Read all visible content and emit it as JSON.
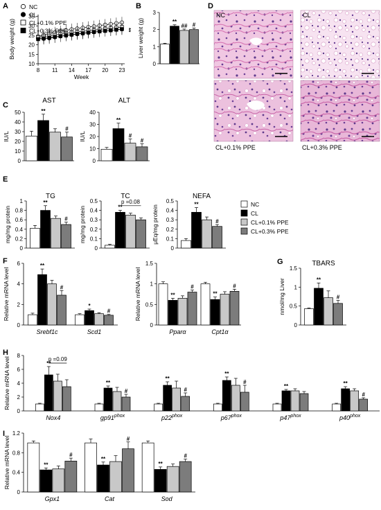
{
  "palette": {
    "NC": "#ffffff",
    "CL": "#000000",
    "CL+0.1% PPE": "#c8c8c8",
    "CL+0.3% PPE": "#7c7c7c",
    "histology_bg": "#f1cde6",
    "histology_nuclei": "#5e3a8c",
    "histology_cytoplasm": "#d776b4"
  },
  "histology": {
    "panel_label": "D",
    "labels": [
      "NC",
      "CL",
      "CL+0.1% PPE",
      "CL+0.3% PPE"
    ]
  },
  "chart_data": [
    {
      "id": "A",
      "panel_label": "A",
      "type": "line",
      "xlabel": "Week",
      "ylabel": "Body weight (g)",
      "xticks": [
        8,
        11,
        14,
        17,
        20,
        23
      ],
      "yticks": [
        10,
        15,
        20,
        25,
        30,
        35
      ],
      "xlim": [
        8,
        23.5
      ],
      "ylim": [
        10,
        36
      ],
      "legend": [
        "NC",
        "CL",
        "CL+0.1% PPE",
        "CL+0.3% PPE"
      ],
      "x": [
        8,
        9,
        10,
        11,
        12,
        13,
        14,
        15,
        16,
        17,
        18,
        19,
        20,
        21,
        22,
        23
      ],
      "series": [
        {
          "name": "NC",
          "marker": "circle-open",
          "values": [
            24.5,
            25.2,
            25.9,
            26.5,
            27.1,
            27.7,
            28.2,
            28.6,
            29.0,
            29.4,
            29.8,
            30.2,
            30.6,
            31.0,
            31.4,
            31.8
          ]
        },
        {
          "name": "CL",
          "marker": "circle-filled",
          "values": [
            23.5,
            23.2,
            23.5,
            24.0,
            24.5,
            24.9,
            25.3,
            25.7,
            26.0,
            26.4,
            26.7,
            27.1,
            27.4,
            27.7,
            28.0,
            28.3
          ]
        },
        {
          "name": "CL+0.1% PPE",
          "marker": "square-open",
          "values": [
            24.0,
            24.4,
            24.8,
            25.2,
            25.6,
            26.0,
            26.4,
            26.8,
            27.1,
            27.5,
            27.8,
            28.1,
            28.5,
            28.8,
            29.1,
            29.4
          ]
        },
        {
          "name": "CL+0.3% PPE",
          "marker": "square-filled",
          "values": [
            23.0,
            23.4,
            23.8,
            24.2,
            24.6,
            25.0,
            25.4,
            25.8,
            26.1,
            26.5,
            26.8,
            27.1,
            27.4,
            27.7,
            28.0,
            28.3
          ]
        }
      ],
      "error": 3,
      "annotations": [
        "**"
      ]
    },
    {
      "id": "B",
      "panel_label": "B",
      "type": "bar",
      "ylabel": "Liver weight (g)",
      "yticks": [
        0,
        1,
        2,
        3
      ],
      "ylim": [
        0,
        3
      ],
      "groups": [
        {
          "label": "",
          "values": [
            1.15,
            2.2,
            1.95,
            2.0
          ],
          "errors": [
            0.05,
            0.08,
            0.08,
            0.09
          ],
          "marks": [
            "",
            "**",
            "##",
            "#"
          ]
        }
      ]
    },
    {
      "id": "C1",
      "panel_label": "C",
      "type": "bar",
      "title": "AST",
      "ylabel": "IU/L",
      "yticks": [
        0,
        10,
        20,
        30,
        40,
        50
      ],
      "ylim": [
        0,
        50
      ],
      "groups": [
        {
          "label": "",
          "values": [
            25.5,
            41.5,
            29.5,
            24.5
          ],
          "errors": [
            5,
            6.5,
            3.5,
            5
          ],
          "marks": [
            "",
            "**",
            "",
            "#"
          ]
        }
      ]
    },
    {
      "id": "C2",
      "panel_label": "",
      "type": "bar",
      "title": "ALT",
      "ylabel": "IU/L",
      "yticks": [
        0,
        10,
        20,
        30,
        40
      ],
      "ylim": [
        0,
        40
      ],
      "groups": [
        {
          "label": "",
          "values": [
            9.5,
            26.5,
            14.5,
            11.5
          ],
          "errors": [
            1.5,
            4.5,
            3.5,
            2.5
          ],
          "marks": [
            "",
            "**",
            "#",
            "#"
          ]
        }
      ]
    },
    {
      "id": "E1",
      "panel_label": "E",
      "type": "bar",
      "title": "TG",
      "ylabel": "mg/mg protein",
      "yticks": [
        0,
        0.2,
        0.4,
        0.6,
        0.8,
        1
      ],
      "yticklabels": [
        "0",
        "0.2",
        "0.4",
        "0.6",
        "0.8",
        "1"
      ],
      "ylim": [
        0,
        1
      ],
      "groups": [
        {
          "label": "",
          "values": [
            0.42,
            0.8,
            0.63,
            0.5
          ],
          "errors": [
            0.06,
            0.1,
            0.05,
            0.05
          ],
          "marks": [
            "",
            "**",
            "",
            "#"
          ]
        }
      ]
    },
    {
      "id": "E2",
      "panel_label": "",
      "type": "bar",
      "title": "TC",
      "ylabel": "mg/mg protein",
      "yticks": [
        0,
        0.1,
        0.2,
        0.3,
        0.4,
        0.5
      ],
      "yticklabels": [
        "0",
        "0.1",
        "0.2",
        "0.3",
        "0.4",
        "0.5"
      ],
      "ylim": [
        0,
        0.5
      ],
      "groups": [
        {
          "label": "",
          "values": [
            0.03,
            0.38,
            0.35,
            0.3
          ],
          "errors": [
            0.01,
            0.02,
            0.02,
            0.02
          ],
          "marks": [
            "",
            "**",
            "",
            ""
          ]
        }
      ],
      "bracket": {
        "from": 1,
        "to": 3,
        "y": 0.45,
        "text": "p =0.08"
      }
    },
    {
      "id": "E3",
      "panel_label": "",
      "type": "bar",
      "title": "NEFA",
      "ylabel": "μEq/mg protein",
      "yticks": [
        0,
        0.1,
        0.2,
        0.3,
        0.4,
        0.5
      ],
      "yticklabels": [
        "0",
        "0.1",
        "0.2",
        "0.3",
        "0.4",
        "0.5"
      ],
      "ylim": [
        0,
        0.5
      ],
      "groups": [
        {
          "label": "",
          "values": [
            0.08,
            0.38,
            0.3,
            0.23
          ],
          "errors": [
            0.02,
            0.05,
            0.03,
            0.02
          ],
          "marks": [
            "",
            "**",
            "",
            "#"
          ]
        }
      ],
      "legend": [
        "NC",
        "CL",
        "CL+0.1% PPE",
        "CL+0.3% PPE"
      ]
    },
    {
      "id": "F1",
      "panel_label": "F",
      "type": "bar",
      "ylabel": "Relative mRNA level",
      "yticks": [
        0,
        2,
        4,
        6
      ],
      "ylim": [
        0,
        6
      ],
      "groups": [
        {
          "label": "Srebf1c",
          "values": [
            1.0,
            4.9,
            4.0,
            2.9
          ],
          "errors": [
            0.15,
            0.55,
            0.35,
            0.45
          ],
          "marks": [
            "",
            "**",
            "",
            "#"
          ]
        },
        {
          "label": "Scd1",
          "values": [
            1.0,
            1.4,
            1.1,
            0.95
          ],
          "errors": [
            0.1,
            0.15,
            0.1,
            0.08
          ],
          "marks": [
            "",
            "*",
            "",
            "#"
          ]
        }
      ]
    },
    {
      "id": "F2",
      "panel_label": "",
      "type": "bar",
      "ylabel": "Relative mRNA level",
      "yticks": [
        0,
        0.5,
        1,
        1.5
      ],
      "yticklabels": [
        "0",
        "0.5",
        "1",
        "1.5"
      ],
      "ylim": [
        0,
        1.5
      ],
      "groups": [
        {
          "label": "Pparα",
          "values": [
            1.0,
            0.6,
            0.65,
            0.8
          ],
          "errors": [
            0.05,
            0.05,
            0.06,
            0.05
          ],
          "marks": [
            "",
            "**",
            "",
            "#"
          ]
        },
        {
          "label": "Cpt1α",
          "values": [
            1.0,
            0.62,
            0.75,
            0.82
          ],
          "errors": [
            0.04,
            0.06,
            0.06,
            0.05
          ],
          "marks": [
            "",
            "**",
            "",
            "#"
          ]
        }
      ]
    },
    {
      "id": "G",
      "panel_label": "G",
      "type": "bar",
      "title": "TBARS",
      "ylabel": "nmol/mg Liver",
      "yticks": [
        0,
        0.5,
        1,
        1.5
      ],
      "yticklabels": [
        "0",
        "0.5",
        "1",
        "1.5"
      ],
      "ylim": [
        0,
        1.5
      ],
      "groups": [
        {
          "label": "",
          "values": [
            0.43,
            0.97,
            0.72,
            0.57
          ],
          "errors": [
            0.02,
            0.14,
            0.18,
            0.08
          ],
          "marks": [
            "",
            "**",
            "",
            "#"
          ]
        }
      ]
    },
    {
      "id": "H",
      "panel_label": "H",
      "type": "bar",
      "ylabel": "Relative mRNA level",
      "yticks": [
        0,
        2,
        4,
        6,
        8
      ],
      "ylim": [
        0,
        8
      ],
      "groups": [
        {
          "label": "Nox4",
          "values": [
            1.0,
            5.2,
            4.3,
            3.5
          ],
          "errors": [
            0.1,
            1.2,
            1.0,
            1.0
          ],
          "marks": [
            "",
            "**",
            "",
            ""
          ]
        },
        {
          "label": "gp91",
          "sup": "phox",
          "values": [
            1.0,
            3.3,
            2.8,
            2.0
          ],
          "errors": [
            0.1,
            0.3,
            0.6,
            0.4
          ],
          "marks": [
            "",
            "**",
            "",
            "#"
          ]
        },
        {
          "label": "p22",
          "sup": "phox",
          "values": [
            1.0,
            3.7,
            3.3,
            2.1
          ],
          "errors": [
            0.1,
            0.5,
            1.0,
            0.5
          ],
          "marks": [
            "",
            "**",
            "",
            "#"
          ]
        },
        {
          "label": "p67",
          "sup": "phox",
          "values": [
            1.0,
            4.4,
            3.7,
            2.7
          ],
          "errors": [
            0.1,
            0.5,
            1.0,
            1.0
          ],
          "marks": [
            "",
            "**",
            "",
            "#"
          ]
        },
        {
          "label": "p47",
          "sup": "phox",
          "values": [
            1.0,
            2.9,
            2.9,
            2.5
          ],
          "errors": [
            0.1,
            0.2,
            0.3,
            0.3
          ],
          "marks": [
            "",
            "**",
            "",
            ""
          ]
        },
        {
          "label": "p40",
          "sup": "phox",
          "values": [
            1.0,
            3.2,
            2.9,
            1.7
          ],
          "errors": [
            0.1,
            0.3,
            0.3,
            0.2
          ],
          "marks": [
            "",
            "**",
            "",
            "#"
          ]
        }
      ],
      "bracket": {
        "from": 1,
        "to": 3,
        "y": 6.9,
        "text": "p =0.09"
      }
    },
    {
      "id": "I",
      "panel_label": "I",
      "type": "bar",
      "ylabel": "Relative mRNA level",
      "yticks": [
        0,
        0.4,
        0.8,
        1.2
      ],
      "yticklabels": [
        "0",
        "0.4",
        "0.8",
        "1.2"
      ],
      "ylim": [
        0,
        1.2
      ],
      "groups": [
        {
          "label": "Gpx1",
          "values": [
            1.0,
            0.45,
            0.47,
            0.63
          ],
          "errors": [
            0.04,
            0.04,
            0.06,
            0.06
          ],
          "marks": [
            "",
            "**",
            "",
            "#"
          ]
        },
        {
          "label": "Cat",
          "values": [
            1.0,
            0.55,
            0.62,
            0.88
          ],
          "errors": [
            0.08,
            0.06,
            0.12,
            0.14
          ],
          "marks": [
            "",
            "**",
            "",
            "#"
          ]
        },
        {
          "label": "Sod",
          "values": [
            1.0,
            0.46,
            0.52,
            0.62
          ],
          "errors": [
            0.04,
            0.05,
            0.05,
            0.05
          ],
          "marks": [
            "",
            "**",
            "",
            "#"
          ]
        }
      ]
    }
  ]
}
